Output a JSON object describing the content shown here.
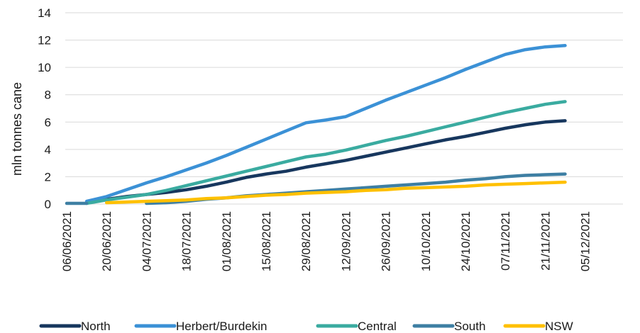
{
  "chart_data": {
    "type": "line",
    "title": "",
    "xlabel": "",
    "ylabel": "mln tonnes cane",
    "ylim": [
      0,
      14
    ],
    "y_ticks": [
      0,
      2,
      4,
      6,
      8,
      10,
      12,
      14
    ],
    "x_ticks": [
      "06/06/2021",
      "20/06/2021",
      "04/07/2021",
      "18/07/2021",
      "01/08/2021",
      "15/08/2021",
      "29/08/2021",
      "12/09/2021",
      "26/09/2021",
      "10/10/2021",
      "24/10/2021",
      "07/11/2021",
      "21/11/2021",
      "05/12/2021"
    ],
    "grid": true,
    "legend": "bottom",
    "x": [
      "06/06/2021",
      "13/06/2021",
      "20/06/2021",
      "27/06/2021",
      "04/07/2021",
      "11/07/2021",
      "18/07/2021",
      "25/07/2021",
      "01/08/2021",
      "08/08/2021",
      "15/08/2021",
      "22/08/2021",
      "29/08/2021",
      "05/09/2021",
      "12/09/2021",
      "19/09/2021",
      "26/09/2021",
      "03/10/2021",
      "10/10/2021",
      "17/10/2021",
      "24/10/2021",
      "31/10/2021",
      "07/11/2021",
      "14/11/2021",
      "21/11/2021",
      "28/11/2021"
    ],
    "series": [
      {
        "name": "North",
        "color": "#17375e",
        "values": [
          null,
          0.1,
          0.35,
          0.55,
          0.7,
          0.85,
          1.05,
          1.3,
          1.6,
          1.95,
          2.2,
          2.4,
          2.7,
          2.95,
          3.2,
          3.5,
          3.8,
          4.1,
          4.4,
          4.7,
          4.95,
          5.25,
          5.55,
          5.8,
          6.0,
          6.1
        ]
      },
      {
        "name": "Herbert/Burdekin",
        "color": "#3b91d6",
        "values": [
          null,
          0.2,
          0.55,
          1.05,
          1.55,
          2.0,
          2.5,
          3.0,
          3.55,
          4.15,
          4.75,
          5.35,
          5.95,
          6.15,
          6.4,
          7.0,
          7.6,
          8.15,
          8.7,
          9.25,
          9.85,
          10.4,
          10.95,
          11.3,
          11.5,
          11.6
        ]
      },
      {
        "name": "Central",
        "color": "#3aaba0",
        "values": [
          null,
          0.05,
          0.3,
          0.5,
          0.7,
          1.0,
          1.35,
          1.7,
          2.05,
          2.4,
          2.75,
          3.1,
          3.45,
          3.65,
          3.95,
          4.3,
          4.65,
          4.95,
          5.3,
          5.65,
          6.0,
          6.35,
          6.7,
          7.0,
          7.3,
          7.5
        ]
      },
      {
        "name": "South",
        "color": "#3e7fa3",
        "values": [
          0.05,
          0.05,
          null,
          null,
          0.05,
          0.1,
          0.2,
          0.35,
          0.45,
          0.6,
          0.7,
          0.8,
          0.9,
          1.0,
          1.1,
          1.2,
          1.3,
          1.4,
          1.5,
          1.6,
          1.75,
          1.85,
          2.0,
          2.1,
          2.15,
          2.2
        ]
      },
      {
        "name": "NSW",
        "color": "#ffc000",
        "values": [
          null,
          null,
          0.1,
          0.15,
          0.2,
          0.25,
          0.3,
          0.4,
          0.45,
          0.55,
          0.65,
          0.7,
          0.8,
          0.85,
          0.9,
          1.0,
          1.05,
          1.15,
          1.2,
          1.25,
          1.3,
          1.4,
          1.45,
          1.5,
          1.55,
          1.6
        ]
      }
    ]
  }
}
